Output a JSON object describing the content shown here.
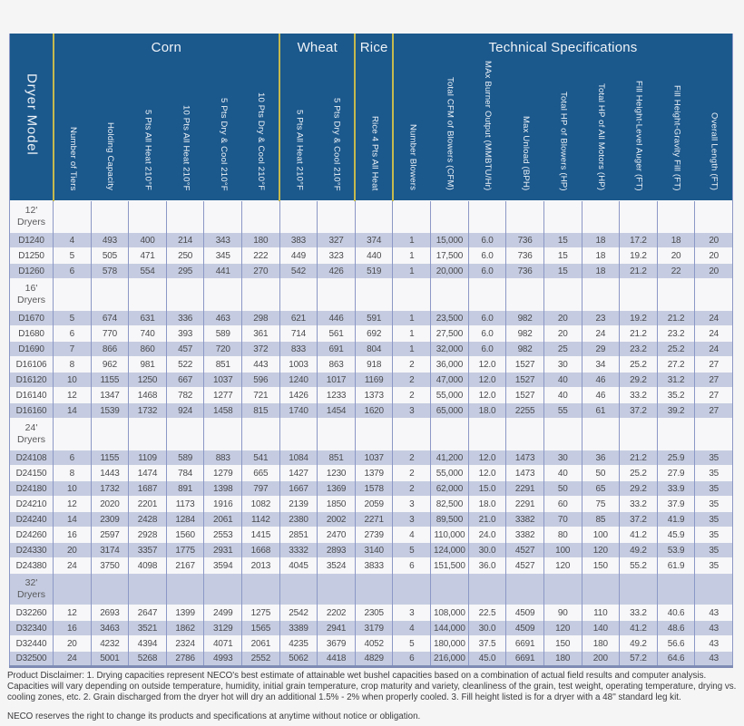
{
  "colors": {
    "page_bg": "#f5f5f6",
    "header_blue": "#1b588c",
    "header_text": "#eef3f8",
    "yellow": "#c5b94e",
    "stripe": "#c5cce1",
    "row_white": "#f7f7f9",
    "cell_border": "#8c98c6",
    "table_bottom": "#7e8bb4",
    "body_text": "#4b4b4e",
    "section_text": "#58585a",
    "footer_text": "#3a3a3c"
  },
  "table": {
    "model_header": "Dryer Model",
    "groups": [
      {
        "label": "Corn",
        "span": 6
      },
      {
        "label": "Wheat",
        "span": 2
      },
      {
        "label": "Rice",
        "span": 1
      },
      {
        "label": "Technical Specifications",
        "span": 9
      }
    ],
    "columns": [
      "Number of Tiers",
      "Holding Capacity",
      "5 Pts All Heat 210°F",
      "10 Pts All Heat 210°F",
      "5 Pts Dry & Cool 210°F",
      "10 Pts Dry & Cool 210°F",
      "5 Pts All Heat 210°F",
      "5 Pts Dry & Cool 210°F",
      "Rice 4 Pts All Heat",
      "Number Blowers",
      "Total CFM of Blowers (CFM)",
      "MAx Burner Output (MMBTU/Hr)",
      "Max Unload (BPH)",
      "Total HP of Blowers (HP)",
      "Total HP of All Motors (HP)",
      "Fill Height-Level Auger (FT)",
      "Fill Height-Gravity Fill (FT)",
      "Overall Length (FT)"
    ],
    "sections": [
      {
        "label_line1": "12'",
        "label_line2": "Dryers",
        "rows": [
          {
            "model": "D1240",
            "values": [
              "4",
              "493",
              "400",
              "214",
              "343",
              "180",
              "383",
              "327",
              "374",
              "1",
              "15,000",
              "6.0",
              "736",
              "15",
              "18",
              "17.2",
              "18",
              "20"
            ]
          },
          {
            "model": "D1250",
            "values": [
              "5",
              "505",
              "471",
              "250",
              "345",
              "222",
              "449",
              "323",
              "440",
              "1",
              "17,500",
              "6.0",
              "736",
              "15",
              "18",
              "19.2",
              "20",
              "20"
            ]
          },
          {
            "model": "D1260",
            "values": [
              "6",
              "578",
              "554",
              "295",
              "441",
              "270",
              "542",
              "426",
              "519",
              "1",
              "20,000",
              "6.0",
              "736",
              "15",
              "18",
              "21.2",
              "22",
              "20"
            ]
          }
        ]
      },
      {
        "label_line1": "16'",
        "label_line2": "Dryers",
        "rows": [
          {
            "model": "D1670",
            "values": [
              "5",
              "674",
              "631",
              "336",
              "463",
              "298",
              "621",
              "446",
              "591",
              "1",
              "23,500",
              "6.0",
              "982",
              "20",
              "23",
              "19.2",
              "21.2",
              "24"
            ]
          },
          {
            "model": "D1680",
            "values": [
              "6",
              "770",
              "740",
              "393",
              "589",
              "361",
              "714",
              "561",
              "692",
              "1",
              "27,500",
              "6.0",
              "982",
              "20",
              "24",
              "21.2",
              "23.2",
              "24"
            ]
          },
          {
            "model": "D1690",
            "values": [
              "7",
              "866",
              "860",
              "457",
              "720",
              "372",
              "833",
              "691",
              "804",
              "1",
              "32,000",
              "6.0",
              "982",
              "25",
              "29",
              "23.2",
              "25.2",
              "24"
            ]
          },
          {
            "model": "D16106",
            "values": [
              "8",
              "962",
              "981",
              "522",
              "851",
              "443",
              "1003",
              "863",
              "918",
              "2",
              "36,000",
              "12.0",
              "1527",
              "30",
              "34",
              "25.2",
              "27.2",
              "27"
            ]
          },
          {
            "model": "D16120",
            "values": [
              "10",
              "1155",
              "1250",
              "667",
              "1037",
              "596",
              "1240",
              "1017",
              "1169",
              "2",
              "47,000",
              "12.0",
              "1527",
              "40",
              "46",
              "29.2",
              "31.2",
              "27"
            ]
          },
          {
            "model": "D16140",
            "values": [
              "12",
              "1347",
              "1468",
              "782",
              "1277",
              "721",
              "1426",
              "1233",
              "1373",
              "2",
              "55,000",
              "12.0",
              "1527",
              "40",
              "46",
              "33.2",
              "35.2",
              "27"
            ]
          },
          {
            "model": "D16160",
            "values": [
              "14",
              "1539",
              "1732",
              "924",
              "1458",
              "815",
              "1740",
              "1454",
              "1620",
              "3",
              "65,000",
              "18.0",
              "2255",
              "55",
              "61",
              "37.2",
              "39.2",
              "27"
            ]
          }
        ]
      },
      {
        "label_line1": "24'",
        "label_line2": "Dryers",
        "rows": [
          {
            "model": "D24108",
            "values": [
              "6",
              "1155",
              "1109",
              "589",
              "883",
              "541",
              "1084",
              "851",
              "1037",
              "2",
              "41,200",
              "12.0",
              "1473",
              "30",
              "36",
              "21.2",
              "25.9",
              "35"
            ]
          },
          {
            "model": "D24150",
            "values": [
              "8",
              "1443",
              "1474",
              "784",
              "1279",
              "665",
              "1427",
              "1230",
              "1379",
              "2",
              "55,000",
              "12.0",
              "1473",
              "40",
              "50",
              "25.2",
              "27.9",
              "35"
            ]
          },
          {
            "model": "D24180",
            "values": [
              "10",
              "1732",
              "1687",
              "891",
              "1398",
              "797",
              "1667",
              "1369",
              "1578",
              "2",
              "62,000",
              "15.0",
              "2291",
              "50",
              "65",
              "29.2",
              "33.9",
              "35"
            ]
          },
          {
            "model": "D24210",
            "values": [
              "12",
              "2020",
              "2201",
              "1173",
              "1916",
              "1082",
              "2139",
              "1850",
              "2059",
              "3",
              "82,500",
              "18.0",
              "2291",
              "60",
              "75",
              "33.2",
              "37.9",
              "35"
            ]
          },
          {
            "model": "D24240",
            "values": [
              "14",
              "2309",
              "2428",
              "1284",
              "2061",
              "1142",
              "2380",
              "2002",
              "2271",
              "3",
              "89,500",
              "21.0",
              "3382",
              "70",
              "85",
              "37.2",
              "41.9",
              "35"
            ]
          },
          {
            "model": "D24260",
            "values": [
              "16",
              "2597",
              "2928",
              "1560",
              "2553",
              "1415",
              "2851",
              "2470",
              "2739",
              "4",
              "110,000",
              "24.0",
              "3382",
              "80",
              "100",
              "41.2",
              "45.9",
              "35"
            ]
          },
          {
            "model": "D24330",
            "values": [
              "20",
              "3174",
              "3357",
              "1775",
              "2931",
              "1668",
              "3332",
              "2893",
              "3140",
              "5",
              "124,000",
              "30.0",
              "4527",
              "100",
              "120",
              "49.2",
              "53.9",
              "35"
            ]
          },
          {
            "model": "D24380",
            "values": [
              "24",
              "3750",
              "4098",
              "2167",
              "3594",
              "2013",
              "4045",
              "3524",
              "3833",
              "6",
              "151,500",
              "36.0",
              "4527",
              "120",
              "150",
              "55.2",
              "61.9",
              "35"
            ]
          }
        ]
      },
      {
        "label_line1": "32'",
        "label_line2": "Dryers",
        "rows": [
          {
            "model": "D32260",
            "values": [
              "12",
              "2693",
              "2647",
              "1399",
              "2499",
              "1275",
              "2542",
              "2202",
              "2305",
              "3",
              "108,000",
              "22.5",
              "4509",
              "90",
              "110",
              "33.2",
              "40.6",
              "43"
            ]
          },
          {
            "model": "D32340",
            "values": [
              "16",
              "3463",
              "3521",
              "1862",
              "3129",
              "1565",
              "3389",
              "2941",
              "3179",
              "4",
              "144,000",
              "30.0",
              "4509",
              "120",
              "140",
              "41.2",
              "48.6",
              "43"
            ]
          },
          {
            "model": "D32440",
            "values": [
              "20",
              "4232",
              "4394",
              "2324",
              "4071",
              "2061",
              "4235",
              "3679",
              "4052",
              "5",
              "180,000",
              "37.5",
              "6691",
              "150",
              "180",
              "49.2",
              "56.6",
              "43"
            ]
          },
          {
            "model": "D32500",
            "values": [
              "24",
              "5001",
              "5268",
              "2786",
              "4993",
              "2552",
              "5062",
              "4418",
              "4829",
              "6",
              "216,000",
              "45.0",
              "6691",
              "180",
              "200",
              "57.2",
              "64.6",
              "43"
            ]
          }
        ]
      }
    ]
  },
  "footer": {
    "disclaimer": "Product Disclaimer: 1. Drying capacities represent NECO's best estimate of attainable wet bushel capacities based on a combination of actual field results and computer analysis. Capacities will vary depending on outside temperature, humidity, initial grain temperature, crop maturity and variety, cleanliness of the grain, test weight, operating temperature, drying vs. cooling zones, etc. 2. Grain discharged from the dryer hot will dry an additional 1.5% - 2% when properly cooled. 3. Fill height listed is for a dryer with a 48'' standard leg kit.",
    "rights": "NECO reserves the right to change its products and specifications at anytime without notice or obligation."
  }
}
